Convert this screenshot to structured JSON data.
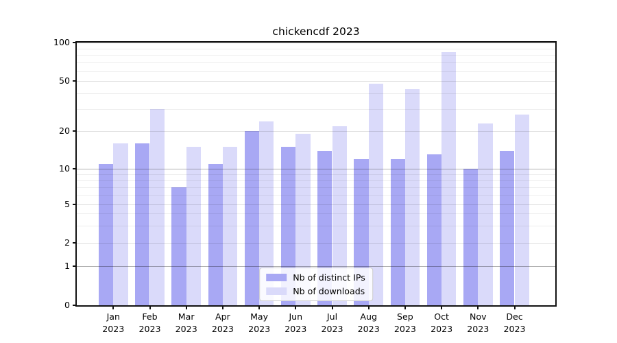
{
  "chart_data": {
    "type": "bar",
    "title": "chickencdf 2023",
    "categories": [
      "Jan",
      "Feb",
      "Mar",
      "Apr",
      "May",
      "Jun",
      "Jul",
      "Aug",
      "Sep",
      "Oct",
      "Nov",
      "Dec"
    ],
    "x_tick_sublabel": "2023",
    "series": [
      {
        "name": "Nb of distinct IPs",
        "color": "#a8a8f4",
        "values": [
          11,
          16,
          7,
          11,
          20,
          15,
          14,
          12,
          12,
          13,
          10,
          14
        ]
      },
      {
        "name": "Nb of downloads",
        "color": "#dadafa",
        "values": [
          16,
          30,
          15,
          15,
          24,
          19,
          22,
          48,
          43,
          84,
          23,
          27
        ]
      }
    ],
    "xlabel": "",
    "ylabel": "",
    "yscale": "symlog",
    "y_ticks": [
      0,
      1,
      2,
      5,
      10,
      20,
      50,
      100
    ],
    "ylim": [
      0,
      100
    ],
    "grid": true,
    "legend_position": "lower center"
  }
}
